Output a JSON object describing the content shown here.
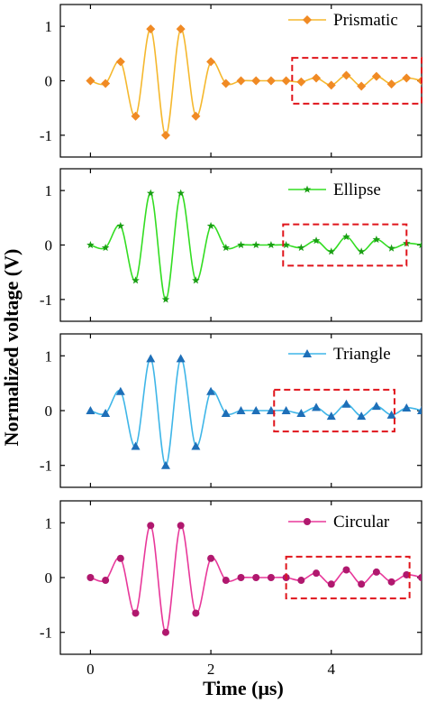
{
  "xlabel": "Time (μs)",
  "ylabel": "Normalized voltage (V)",
  "x_ticks": [
    0,
    2,
    4
  ],
  "y_ticks": [
    -1,
    0,
    1
  ],
  "chart_data": [
    {
      "type": "line",
      "series": [
        {
          "name": "Prismatic",
          "color": "#F5B82E",
          "marker_color": "#F08A24",
          "marker": "diamond",
          "x": [
            0,
            0.25,
            0.5,
            0.75,
            1.0,
            1.25,
            1.5,
            1.75,
            2.0,
            2.25,
            2.5,
            2.75,
            3.0,
            3.25,
            3.5,
            3.75,
            4.0,
            4.25,
            4.5,
            4.75,
            5.0,
            5.25,
            5.5
          ],
          "y": [
            0,
            -0.05,
            0.35,
            -0.65,
            0.95,
            -1.0,
            0.95,
            -0.65,
            0.35,
            -0.05,
            0,
            0,
            0,
            0,
            -0.02,
            0.05,
            -0.08,
            0.1,
            -0.1,
            0.08,
            -0.06,
            0.05,
            0
          ]
        }
      ],
      "xlim": [
        -0.5,
        5.5
      ],
      "ylim": [
        -1.4,
        1.4
      ],
      "highlight_box": {
        "x": [
          3.35,
          5.5
        ],
        "y": [
          -0.42,
          0.42
        ]
      }
    },
    {
      "type": "line",
      "series": [
        {
          "name": "Ellipse",
          "color": "#33DD22",
          "marker_color": "#1A9E14",
          "marker": "star",
          "x": [
            0,
            0.25,
            0.5,
            0.75,
            1.0,
            1.25,
            1.5,
            1.75,
            2.0,
            2.25,
            2.5,
            2.75,
            3.0,
            3.25,
            3.5,
            3.75,
            4.0,
            4.25,
            4.5,
            4.75,
            5.0,
            5.25,
            5.5
          ],
          "y": [
            0,
            -0.05,
            0.35,
            -0.65,
            0.95,
            -1.0,
            0.95,
            -0.65,
            0.35,
            -0.05,
            0,
            0,
            0,
            0,
            -0.05,
            0.08,
            -0.12,
            0.15,
            -0.12,
            0.1,
            -0.06,
            0.03,
            0
          ]
        }
      ],
      "xlim": [
        -0.5,
        5.5
      ],
      "ylim": [
        -1.4,
        1.4
      ],
      "highlight_box": {
        "x": [
          3.2,
          5.25
        ],
        "y": [
          -0.38,
          0.38
        ]
      }
    },
    {
      "type": "line",
      "series": [
        {
          "name": "Triangle",
          "color": "#3FB6E8",
          "marker_color": "#1E6FB8",
          "marker": "triangle",
          "x": [
            0,
            0.25,
            0.5,
            0.75,
            1.0,
            1.25,
            1.5,
            1.75,
            2.0,
            2.25,
            2.5,
            2.75,
            3.0,
            3.25,
            3.5,
            3.75,
            4.0,
            4.25,
            4.5,
            4.75,
            5.0,
            5.25,
            5.5
          ],
          "y": [
            0,
            -0.05,
            0.35,
            -0.65,
            0.95,
            -1.0,
            0.95,
            -0.65,
            0.35,
            -0.05,
            0,
            0,
            0,
            0,
            -0.05,
            0.06,
            -0.1,
            0.12,
            -0.1,
            0.08,
            -0.08,
            0.05,
            0
          ]
        }
      ],
      "xlim": [
        -0.5,
        5.5
      ],
      "ylim": [
        -1.4,
        1.4
      ],
      "highlight_box": {
        "x": [
          3.05,
          5.05
        ],
        "y": [
          -0.38,
          0.38
        ]
      }
    },
    {
      "type": "line",
      "series": [
        {
          "name": "Circular",
          "color": "#E8389A",
          "marker_color": "#B0186E",
          "marker": "circle",
          "x": [
            0,
            0.25,
            0.5,
            0.75,
            1.0,
            1.25,
            1.5,
            1.75,
            2.0,
            2.25,
            2.5,
            2.75,
            3.0,
            3.25,
            3.5,
            3.75,
            4.0,
            4.25,
            4.5,
            4.75,
            5.0,
            5.25,
            5.5
          ],
          "y": [
            0,
            -0.05,
            0.35,
            -0.65,
            0.95,
            -1.0,
            0.95,
            -0.65,
            0.35,
            -0.05,
            0,
            0,
            0,
            0,
            -0.05,
            0.08,
            -0.12,
            0.14,
            -0.12,
            0.1,
            -0.08,
            0.05,
            0
          ]
        }
      ],
      "xlim": [
        -0.5,
        5.5
      ],
      "ylim": [
        -1.4,
        1.4
      ],
      "highlight_box": {
        "x": [
          3.25,
          5.3
        ],
        "y": [
          -0.38,
          0.38
        ]
      }
    }
  ]
}
